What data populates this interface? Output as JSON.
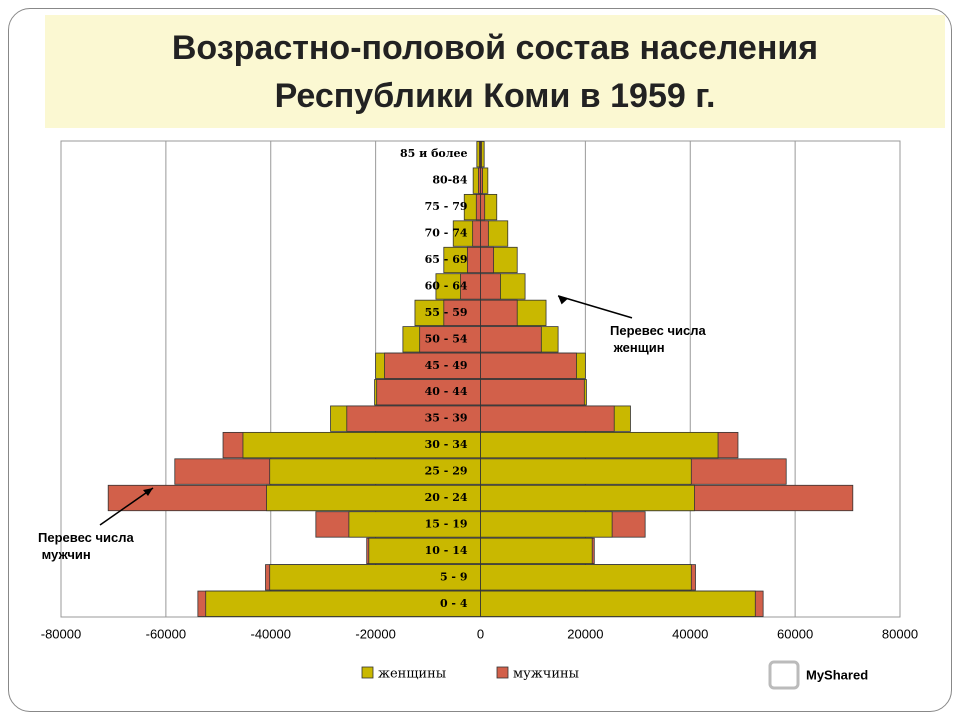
{
  "chart_data": {
    "type": "pyramid",
    "title": "Возрастно-половой состав населения Республики Коми в 1959 г.",
    "categories": [
      "0 - 4",
      "5 - 9",
      "10 - 14",
      "15 - 19",
      "20 - 24",
      "25 - 29",
      "30 - 34",
      "35 - 39",
      "40 - 44",
      "45 - 49",
      "50 - 54",
      "55 - 59",
      "60 - 64",
      "65 - 69",
      "70 - 74",
      "75 - 79",
      "80-84",
      "85 и более"
    ],
    "series": [
      {
        "name": "женщины",
        "color": "#c9b800",
        "side": "left",
        "values": [
          52400,
          40200,
          21300,
          25100,
          40800,
          40200,
          45300,
          28600,
          20200,
          20000,
          14800,
          12500,
          8500,
          7000,
          5200,
          3100,
          1400,
          700
        ]
      },
      {
        "name": "мужчины",
        "color": "#d2604a",
        "side": "right",
        "values": [
          53900,
          41000,
          21700,
          31400,
          71000,
          58300,
          49100,
          25500,
          19800,
          18300,
          11600,
          7000,
          3800,
          2500,
          1500,
          800,
          400,
          200
        ]
      }
    ],
    "xlim": [
      -80000,
      80000
    ],
    "xticks": [
      -80000,
      -60000,
      -40000,
      -20000,
      0,
      20000,
      40000,
      60000,
      80000
    ],
    "grid": true,
    "legend": "bottom",
    "annotations": [
      {
        "text": "Перевес числа женщин",
        "category": 11,
        "side": "right"
      },
      {
        "text": "Перевес числа мужчин",
        "category": 4,
        "side": "left"
      }
    ],
    "watermark": "MyShared"
  }
}
